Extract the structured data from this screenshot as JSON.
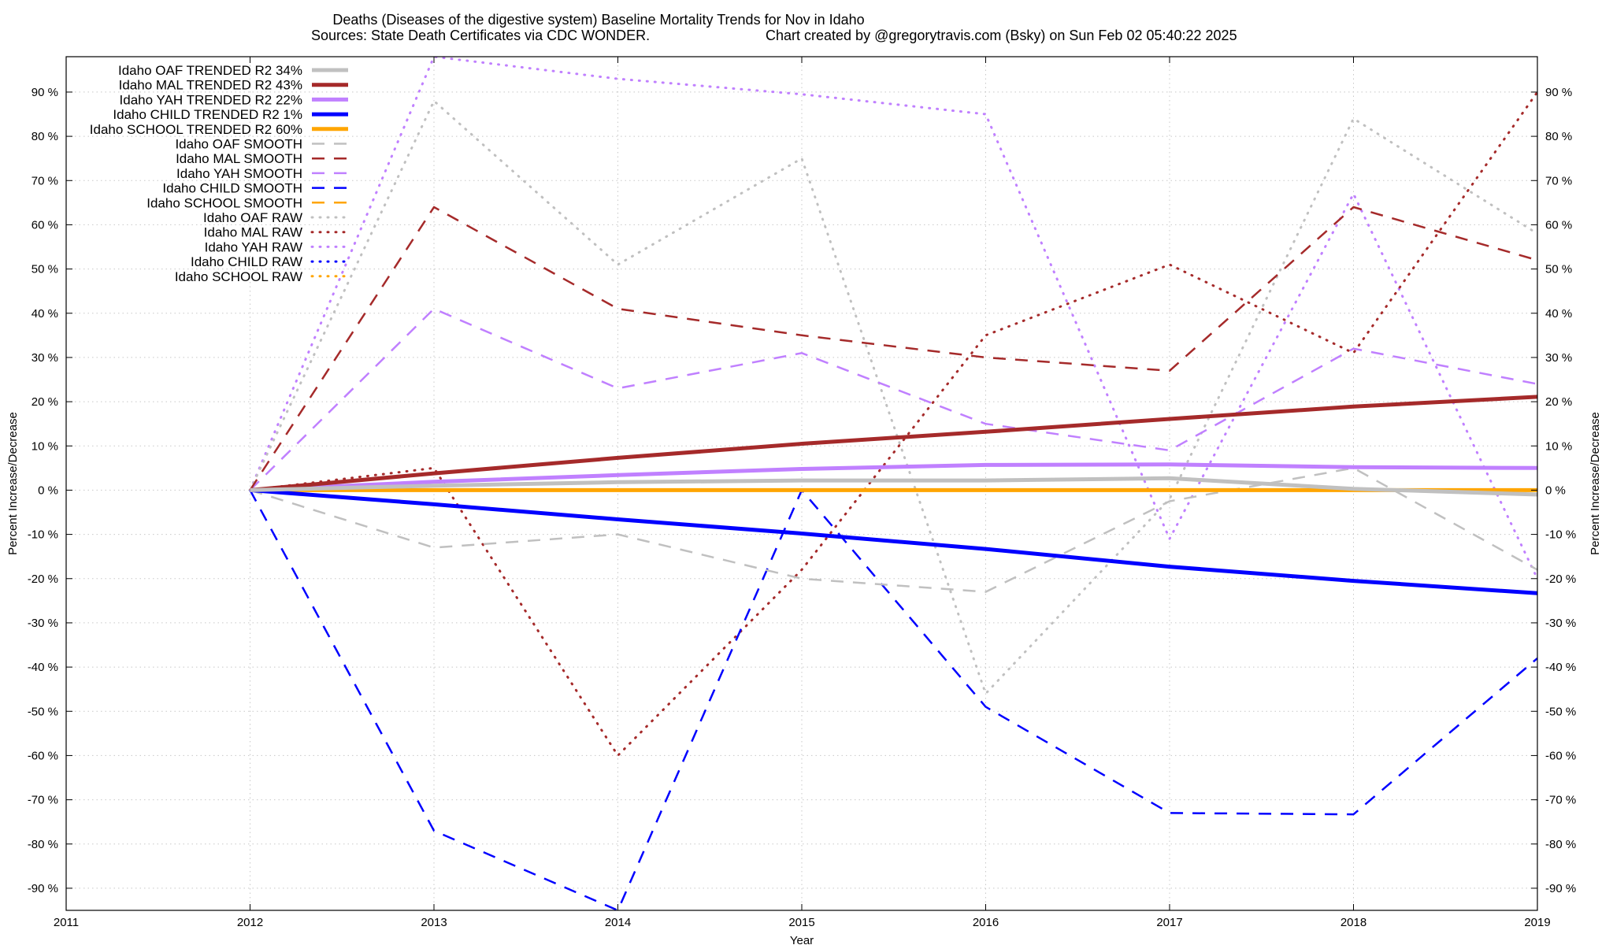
{
  "chart_data": {
    "type": "line",
    "title": "Deaths (Diseases of the digestive system)  Baseline Mortality Trends for Nov in Idaho",
    "subtitle_left": "Sources: State Death Certificates via CDC WONDER.",
    "subtitle_right": "Chart created by @gregorytravis.com (Bsky) on Sun Feb 02 05:40:22 2025",
    "xlabel": "Year",
    "ylabel": "Percent Increase/Decrease",
    "ylabel_right": "Percent Increase/Decrease",
    "xlim": [
      2011,
      2019
    ],
    "ylim": [
      -95,
      98
    ],
    "grid": true,
    "legend_position": "top-left",
    "x_ticks": [
      "2011",
      "2012",
      "2013",
      "2014",
      "2015",
      "2016",
      "2017",
      "2018",
      "2019"
    ],
    "y_ticks": [
      -90,
      -80,
      -70,
      -60,
      -50,
      -40,
      -30,
      -20,
      -10,
      0,
      10,
      20,
      30,
      40,
      50,
      60,
      70,
      80,
      90
    ],
    "y_tick_labels": [
      "-90 %",
      "-80 %",
      "-70 %",
      "-60 %",
      "-50 %",
      "-40 %",
      "-30 %",
      "-20 %",
      "-10 %",
      "0 %",
      "10 %",
      "20 %",
      "30 %",
      "40 %",
      "50 %",
      "60 %",
      "70 %",
      "80 %",
      "90 %"
    ],
    "x": [
      2012,
      2013,
      2014,
      2015,
      2016,
      2017,
      2018,
      2019
    ],
    "series": [
      {
        "name": "Idaho OAF TRENDED R2  34%",
        "style": "solid",
        "color": "#c0c0c0",
        "values": [
          0,
          1,
          1.8,
          2.2,
          2.2,
          2.7,
          0.3,
          -1
        ]
      },
      {
        "name": "Idaho MAL TRENDED R2  43%",
        "style": "solid",
        "color": "#a52a2a",
        "values": [
          0,
          3.8,
          7.3,
          10.5,
          13.2,
          16.1,
          18.9,
          21.1
        ]
      },
      {
        "name": "Idaho YAH TRENDED R2  22%",
        "style": "solid",
        "color": "#c080ff",
        "values": [
          0,
          1.9,
          3.4,
          4.8,
          5.7,
          5.8,
          5.2,
          5
        ]
      },
      {
        "name": "Idaho CHILD TRENDED R2  1%",
        "style": "solid",
        "color": "#0000ff",
        "values": [
          0,
          -3.2,
          -6.6,
          -9.8,
          -13.3,
          -17.3,
          -20.5,
          -23.3
        ]
      },
      {
        "name": "Idaho SCHOOL TRENDED R2  60%",
        "style": "solid",
        "color": "#ffa500",
        "values": [
          0,
          0,
          0,
          0,
          0,
          0,
          0,
          0
        ]
      },
      {
        "name": "Idaho OAF SMOOTH",
        "style": "dashed",
        "color": "#c0c0c0",
        "values": [
          0,
          -13,
          -10,
          -20,
          -23,
          -2.5,
          5,
          -18
        ]
      },
      {
        "name": "Idaho MAL SMOOTH",
        "style": "dashed",
        "color": "#a52a2a",
        "values": [
          0,
          64,
          41,
          35,
          30,
          27,
          64,
          52
        ]
      },
      {
        "name": "Idaho YAH SMOOTH",
        "style": "dashed",
        "color": "#c080ff",
        "values": [
          0,
          41,
          23,
          31,
          15,
          9,
          32,
          24
        ]
      },
      {
        "name": "Idaho CHILD SMOOTH",
        "style": "dashed",
        "color": "#0000ff",
        "values": [
          0,
          -77,
          -95,
          0,
          -49,
          -73,
          -73.3,
          -38
        ]
      },
      {
        "name": "Idaho SCHOOL SMOOTH",
        "style": "dashed",
        "color": "#ffa500",
        "values": [
          0,
          0,
          0,
          0,
          0,
          0,
          0,
          0
        ]
      },
      {
        "name": "Idaho OAF RAW",
        "style": "dotted",
        "color": "#c0c0c0",
        "values": [
          0,
          88,
          51,
          75,
          -46,
          -2,
          84,
          58
        ]
      },
      {
        "name": "Idaho MAL RAW",
        "style": "dotted",
        "color": "#a52a2a",
        "values": [
          0,
          5,
          -60,
          -18,
          35,
          51,
          31,
          90
        ]
      },
      {
        "name": "Idaho YAH RAW",
        "style": "dotted",
        "color": "#c080ff",
        "values": [
          0,
          98,
          93,
          89.5,
          85,
          -11,
          67,
          -20
        ]
      },
      {
        "name": "Idaho CHILD RAW",
        "style": "dotted",
        "color": "#0000ff",
        "values": [
          0,
          0,
          0,
          0,
          0,
          0,
          0,
          0
        ]
      },
      {
        "name": "Idaho SCHOOL RAW",
        "style": "dotted",
        "color": "#ffa500",
        "values": [
          0,
          0,
          0,
          0,
          0,
          0,
          0,
          0
        ]
      }
    ]
  }
}
